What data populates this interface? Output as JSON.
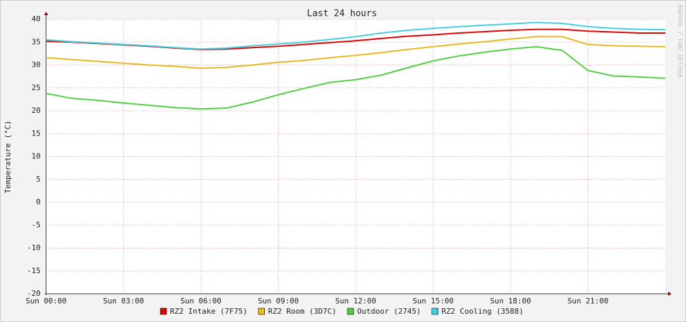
{
  "chart_data": {
    "type": "line",
    "title": "Last 24 hours",
    "ylabel": "Temperature (°C)",
    "watermark": "RRDTOOL / TOBI OETIKER",
    "x": [
      0,
      1,
      2,
      3,
      4,
      5,
      6,
      7,
      8,
      9,
      10,
      11,
      12,
      13,
      14,
      15,
      16,
      17,
      18,
      19,
      20,
      21,
      22,
      23,
      24
    ],
    "xlim": [
      0,
      24
    ],
    "xticks": [
      {
        "value": 0,
        "label": "Sun 00:00"
      },
      {
        "value": 3,
        "label": "Sun 03:00"
      },
      {
        "value": 6,
        "label": "Sun 06:00"
      },
      {
        "value": 9,
        "label": "Sun 09:00"
      },
      {
        "value": 12,
        "label": "Sun 12:00"
      },
      {
        "value": 15,
        "label": "Sun 15:00"
      },
      {
        "value": 18,
        "label": "Sun 18:00"
      },
      {
        "value": 21,
        "label": "Sun 21:00"
      }
    ],
    "ylim": [
      -20,
      40
    ],
    "yticks": [
      -20,
      -15,
      -10,
      -5,
      0,
      5,
      10,
      15,
      20,
      25,
      30,
      35,
      40
    ],
    "grid": true,
    "legend": "bottom",
    "series": [
      {
        "name": "RZ2 Intake (7F75)",
        "color": "#e00000",
        "values": [
          35.2,
          35,
          34.7,
          34.4,
          34.1,
          33.7,
          33.4,
          33.5,
          33.8,
          34.1,
          34.5,
          34.9,
          35.3,
          35.8,
          36.3,
          36.6,
          37,
          37.3,
          37.6,
          37.8,
          37.8,
          37.4,
          37.2,
          37,
          37
        ]
      },
      {
        "name": "RZ2 Room (3D7C)",
        "color": "#e8b820",
        "values": [
          31.6,
          31.2,
          30.8,
          30.4,
          30,
          29.7,
          29.3,
          29.5,
          30,
          30.6,
          31,
          31.6,
          32.1,
          32.7,
          33.4,
          34,
          34.6,
          35.1,
          35.7,
          36.2,
          36.2,
          34.5,
          34.2,
          34.1,
          34
        ]
      },
      {
        "name": "Outdoor (2745)",
        "color": "#50d040",
        "values": [
          23.8,
          22.7,
          22.3,
          21.7,
          21.2,
          20.7,
          20.4,
          20.6,
          21.9,
          23.5,
          24.9,
          26.2,
          26.8,
          27.8,
          29.4,
          30.9,
          32,
          32.8,
          33.5,
          34,
          33.2,
          28.8,
          27.6,
          27.4,
          27.1
        ]
      },
      {
        "name": "RZ2 Cooling (3588)",
        "color": "#40d0e0",
        "values": [
          35.5,
          35.1,
          34.8,
          34.5,
          34.2,
          33.8,
          33.5,
          33.7,
          34.2,
          34.6,
          35,
          35.6,
          36.2,
          37,
          37.6,
          38,
          38.4,
          38.7,
          39,
          39.3,
          39.1,
          38.4,
          38,
          37.8,
          37.7
        ]
      }
    ]
  }
}
